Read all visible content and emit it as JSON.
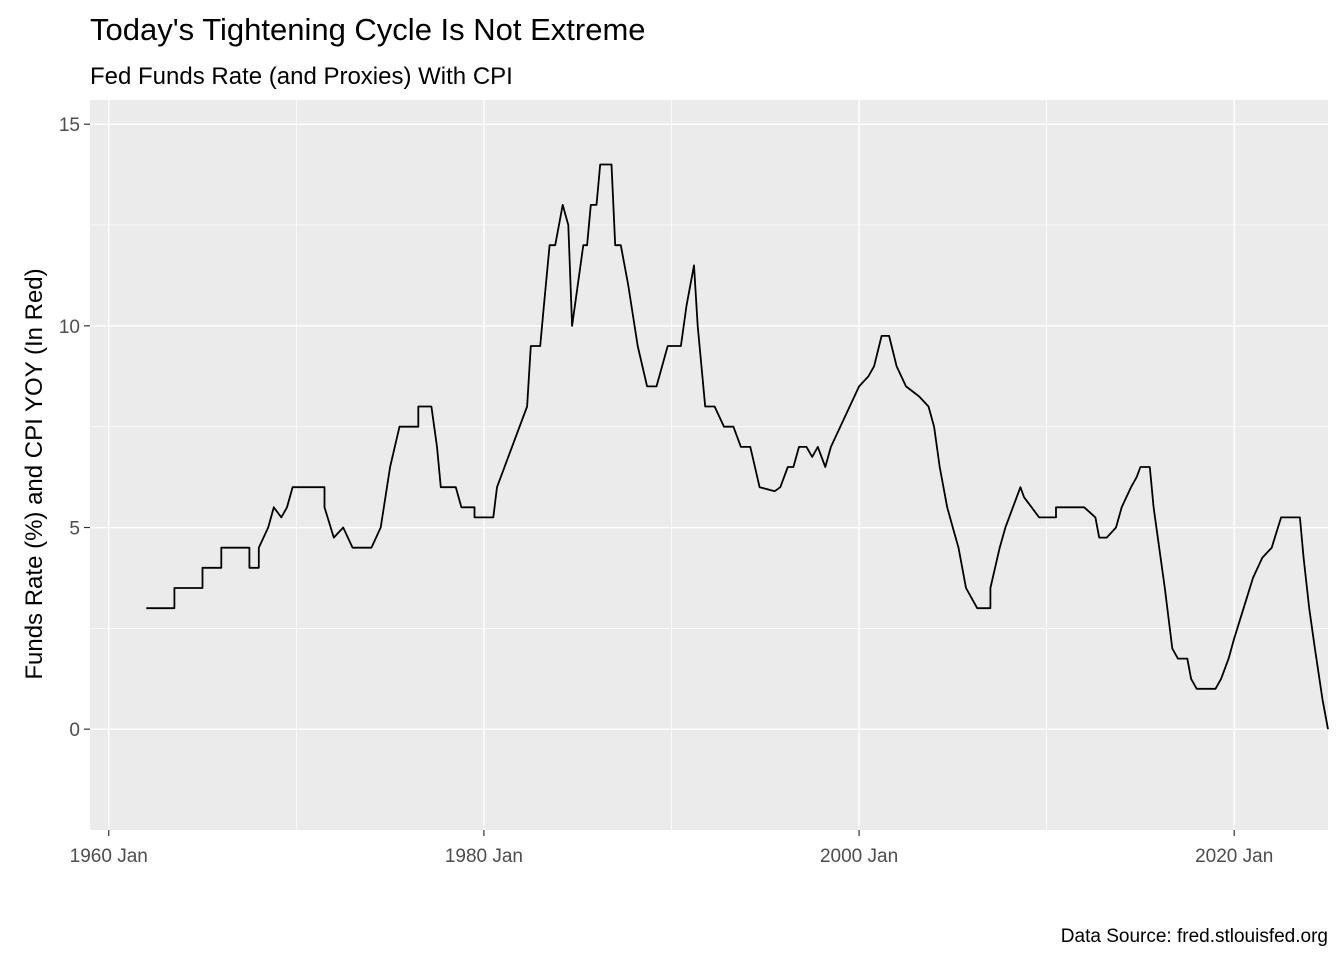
{
  "chart_data": {
    "type": "line",
    "title": "Today's Tightening Cycle Is Not Extreme",
    "subtitle": "Fed Funds Rate (and Proxies) With CPI",
    "xlabel": "",
    "ylabel": "Funds Rate (%) and CPI YOY (In Red)",
    "caption": "Data Source: fred.stlouisfed.org",
    "xlim": [
      1959.0,
      2025.0
    ],
    "ylim": [
      -2.5,
      15.6
    ],
    "x_ticks": [
      1960,
      1980,
      2000,
      2020
    ],
    "x_tick_labels": [
      "1960 Jan",
      "1980 Jan",
      "2000 Jan",
      "2020 Jan"
    ],
    "y_ticks": [
      0,
      5,
      10,
      15
    ],
    "y_tick_labels": [
      "0",
      "5",
      "10",
      "15"
    ],
    "grid": true,
    "legend": "none",
    "colors": {
      "panel": "#ebebeb",
      "grid": "#ffffff",
      "funds_rate": "#000000",
      "cpi": "#ff0000"
    },
    "series": [
      {
        "color": "#000000",
        "points": [
          [
            1962.0,
            3.0
          ],
          [
            1963.5,
            3.0
          ],
          [
            1963.5,
            3.5
          ],
          [
            1965.0,
            3.5
          ],
          [
            1965.0,
            4.0
          ],
          [
            1966.0,
            4.0
          ],
          [
            1966.0,
            4.5
          ],
          [
            1967.5,
            4.5
          ],
          [
            1967.5,
            4.0
          ],
          [
            1968.0,
            4.0
          ],
          [
            1968.0,
            4.5
          ],
          [
            1968.5,
            5.0
          ],
          [
            1968.8,
            5.5
          ],
          [
            1969.2,
            5.25
          ],
          [
            1969.5,
            5.5
          ],
          [
            1969.8,
            6.0
          ],
          [
            1971.5,
            6.0
          ],
          [
            1971.5,
            5.5
          ],
          [
            1972.0,
            4.75
          ],
          [
            1972.5,
            5.0
          ],
          [
            1973.0,
            4.5
          ],
          [
            1974.0,
            4.5
          ],
          [
            1974.5,
            5.0
          ],
          [
            1975.0,
            6.5
          ],
          [
            1975.5,
            7.5
          ],
          [
            1976.5,
            7.5
          ],
          [
            1976.5,
            8.0
          ],
          [
            1977.2,
            8.0
          ],
          [
            1977.5,
            7.0
          ],
          [
            1977.7,
            6.0
          ],
          [
            1978.5,
            6.0
          ],
          [
            1978.8,
            5.5
          ],
          [
            1979.5,
            5.5
          ],
          [
            1979.5,
            5.25
          ],
          [
            1980.5,
            5.25
          ],
          [
            1980.7,
            6.0
          ],
          [
            1981.5,
            7.0
          ],
          [
            1982.3,
            8.0
          ],
          [
            1982.5,
            9.5
          ],
          [
            1983.0,
            9.5
          ],
          [
            1983.2,
            10.5
          ],
          [
            1983.5,
            12.0
          ],
          [
            1983.8,
            12.0
          ],
          [
            1984.2,
            13.0
          ],
          [
            1984.5,
            12.5
          ],
          [
            1984.7,
            10.0
          ],
          [
            1985.0,
            11.0
          ],
          [
            1985.3,
            12.0
          ],
          [
            1985.5,
            12.0
          ],
          [
            1985.7,
            13.0
          ],
          [
            1986.0,
            13.0
          ],
          [
            1986.2,
            14.0
          ],
          [
            1986.8,
            14.0
          ],
          [
            1987.0,
            12.0
          ],
          [
            1987.3,
            12.0
          ],
          [
            1987.7,
            11.0
          ],
          [
            1988.2,
            9.5
          ],
          [
            1988.7,
            8.5
          ],
          [
            1989.2,
            8.5
          ],
          [
            1989.5,
            9.0
          ],
          [
            1989.8,
            9.5
          ],
          [
            1990.5,
            9.5
          ],
          [
            1990.8,
            10.5
          ],
          [
            1991.2,
            11.5
          ],
          [
            1991.4,
            10.0
          ],
          [
            1991.8,
            8.0
          ],
          [
            1992.3,
            8.0
          ],
          [
            1992.8,
            7.5
          ],
          [
            1993.3,
            7.5
          ],
          [
            1993.7,
            7.0
          ],
          [
            1994.2,
            7.0
          ],
          [
            1994.7,
            6.0
          ],
          [
            1995.5,
            5.9
          ],
          [
            1995.8,
            6.0
          ],
          [
            1996.2,
            6.5
          ],
          [
            1996.5,
            6.5
          ],
          [
            1996.8,
            7.0
          ],
          [
            1997.2,
            7.0
          ],
          [
            1997.5,
            6.75
          ],
          [
            1997.8,
            7.0
          ],
          [
            1998.2,
            6.5
          ],
          [
            1998.5,
            7.0
          ],
          [
            1999.0,
            7.5
          ],
          [
            1999.5,
            8.0
          ],
          [
            2000.0,
            8.5
          ],
          [
            2000.5,
            8.75
          ],
          [
            2000.8,
            9.0
          ],
          [
            2001.2,
            9.75
          ],
          [
            2001.6,
            9.75
          ],
          [
            2002.0,
            9.0
          ],
          [
            2002.5,
            8.5
          ],
          [
            2003.2,
            8.25
          ],
          [
            2003.7,
            8.0
          ],
          [
            2004.0,
            7.5
          ],
          [
            2004.3,
            6.5
          ],
          [
            2004.7,
            5.5
          ],
          [
            2005.0,
            5.0
          ],
          [
            2005.3,
            4.5
          ],
          [
            2005.7,
            3.5
          ],
          [
            2006.0,
            3.25
          ],
          [
            2006.3,
            3.0
          ],
          [
            2007.0,
            3.0
          ],
          [
            2007.0,
            3.5
          ],
          [
            2007.5,
            4.5
          ],
          [
            2007.8,
            5.0
          ],
          [
            2008.2,
            5.5
          ],
          [
            2008.6,
            6.0
          ],
          [
            2008.8,
            5.75
          ],
          [
            2009.2,
            5.5
          ],
          [
            2009.6,
            5.25
          ],
          [
            2010.5,
            5.25
          ],
          [
            2010.5,
            5.5
          ],
          [
            2011.5,
            5.5
          ],
          [
            2012.0,
            5.5
          ],
          [
            2012.6,
            5.25
          ],
          [
            2012.8,
            4.75
          ],
          [
            2013.2,
            4.75
          ],
          [
            2013.7,
            5.0
          ],
          [
            2014.0,
            5.5
          ],
          [
            2014.5,
            6.0
          ],
          [
            2014.8,
            6.25
          ],
          [
            2015.0,
            6.5
          ],
          [
            2015.5,
            6.5
          ],
          [
            2015.7,
            5.5
          ],
          [
            2016.0,
            4.5
          ],
          [
            2016.3,
            3.5
          ],
          [
            2016.7,
            2.0
          ],
          [
            2017.0,
            1.75
          ],
          [
            2017.5,
            1.75
          ],
          [
            2017.7,
            1.25
          ],
          [
            2018.0,
            1.0
          ],
          [
            2019.0,
            1.0
          ],
          [
            2019.3,
            1.25
          ],
          [
            2019.7,
            1.75
          ],
          [
            2020.0,
            2.25
          ],
          [
            2020.5,
            3.0
          ],
          [
            2021.0,
            3.75
          ],
          [
            2021.5,
            4.25
          ],
          [
            2022.0,
            4.5
          ],
          [
            2022.5,
            5.25
          ],
          [
            2023.5,
            5.25
          ],
          [
            2023.7,
            4.25
          ],
          [
            2024.0,
            3.0
          ],
          [
            2024.3,
            2.0
          ],
          [
            2024.7,
            0.75
          ],
          [
            2025.0,
            0.0
          ]
        ]
      }
    ]
  }
}
